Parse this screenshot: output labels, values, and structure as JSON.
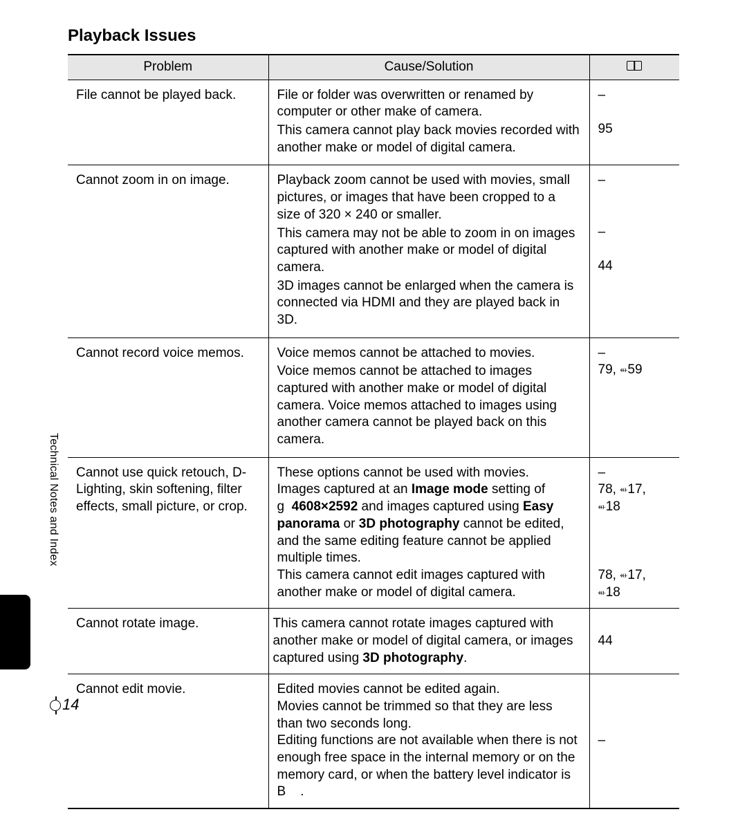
{
  "section_title": "Playback Issues",
  "sidebar_label": "Technical Notes and Index",
  "page_number": "14",
  "columns": {
    "problem": "Problem",
    "cause": "Cause/Solution"
  },
  "link_glyph": "⬴",
  "rows": [
    {
      "problem": "File cannot be played back.",
      "causes": [
        "File or folder was overwritten or renamed by computer or other make of camera.",
        "This camera cannot play back movies recorded with another make or model of digital camera."
      ],
      "refs": [
        "–",
        "95"
      ]
    },
    {
      "problem": "Cannot zoom in on image.",
      "causes": [
        "Playback zoom cannot be used with movies, small pictures, or images that have been cropped to a size of 320 × 240 or smaller.",
        "This camera may not be able to zoom in on images captured with another make or model of digital camera.",
        "3D images cannot be enlarged when the camera is connected via HDMI and they are played back in 3D."
      ],
      "refs": [
        "–",
        "–",
        "44"
      ]
    },
    {
      "problem": "Cannot record voice memos.",
      "causes": [
        "Voice memos cannot be attached to movies.",
        "Voice memos cannot be attached to images captured with another make or model of digital camera. Voice memos attached to images using another camera cannot be played back on this camera."
      ],
      "refs": [
        "–",
        "79, ⬴59"
      ]
    },
    {
      "problem": "Cannot use quick retouch, D-Lighting, skin softening, filter effects, small picture, or crop.",
      "cause_html": "These options cannot be used with movies.<br>Images captured at an <b>Image mode</b> setting of g&nbsp;&nbsp;<b>4608×2592</b> and images captured using <b>Easy panorama</b> or <b>3D photography</b> cannot be edited, and the same editing feature cannot be applied multiple times.<br>This camera cannot edit images captured with another make or model of digital camera.",
      "refs_html": "–<br>78, ⬴17,<br>⬴18<br><br><br><br>78, ⬴17,<br>⬴18"
    },
    {
      "problem": "Cannot rotate image.",
      "cause_html": "This camera cannot rotate images captured with another make or model of digital camera, or images captured using <b>3D photography</b>.",
      "refs": [
        "44"
      ]
    },
    {
      "problem": "Cannot edit movie.",
      "cause_html": "Edited movies cannot be edited again.<br>Movies cannot be trimmed so that they are less than two seconds long.<br>Editing functions are not available when there is not enough free space in the internal memory or on the memory card, or when the battery level indicator is B&nbsp;&nbsp;&nbsp;&nbsp;.",
      "refs": [
        "–"
      ]
    }
  ]
}
